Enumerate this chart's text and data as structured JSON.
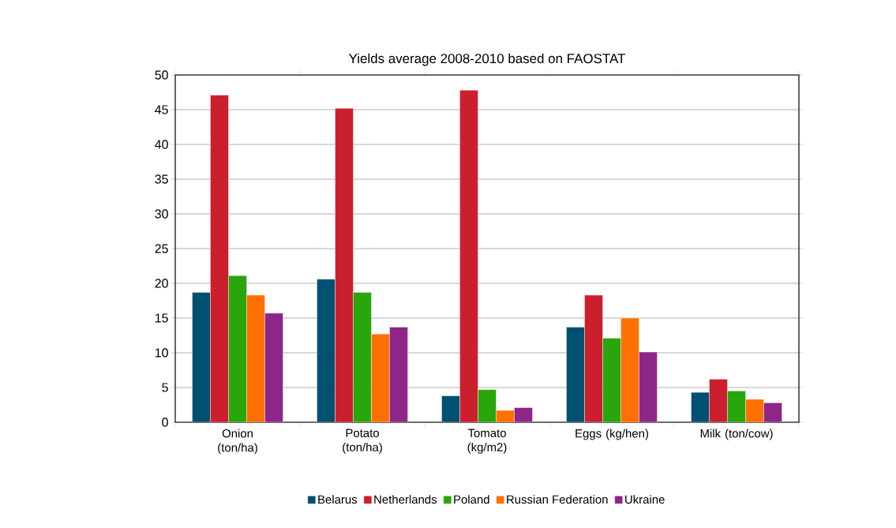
{
  "chart_data": {
    "type": "bar",
    "title": "Yields average 2008-2010 based on FAOSTAT",
    "categories": [
      "Onion (ton/ha)",
      "Potato (ton/ha)",
      "Tomato (kg/m2)",
      "Eggs (kg/hen)",
      "Milk (ton/cow)"
    ],
    "series": [
      {
        "name": "Belarus",
        "color": "#005070",
        "values": [
          18.7,
          20.6,
          3.8,
          13.7,
          4.3
        ]
      },
      {
        "name": "Netherlands",
        "color": "#cc1f2e",
        "values": [
          47.1,
          45.2,
          47.8,
          18.3,
          6.2
        ]
      },
      {
        "name": "Poland",
        "color": "#28a60c",
        "values": [
          21.1,
          18.7,
          4.7,
          12.1,
          4.5
        ]
      },
      {
        "name": "Russian Federation",
        "color": "#ff7000",
        "values": [
          18.3,
          12.7,
          1.7,
          15.0,
          3.3
        ]
      },
      {
        "name": "Ukraine",
        "color": "#8e2689",
        "values": [
          15.7,
          13.7,
          2.1,
          10.1,
          2.8
        ]
      }
    ],
    "ylim": [
      0,
      50
    ],
    "yticks": [
      0,
      5,
      10,
      15,
      20,
      25,
      30,
      35,
      40,
      45,
      50
    ],
    "grid": "y",
    "legend": "bottom"
  }
}
